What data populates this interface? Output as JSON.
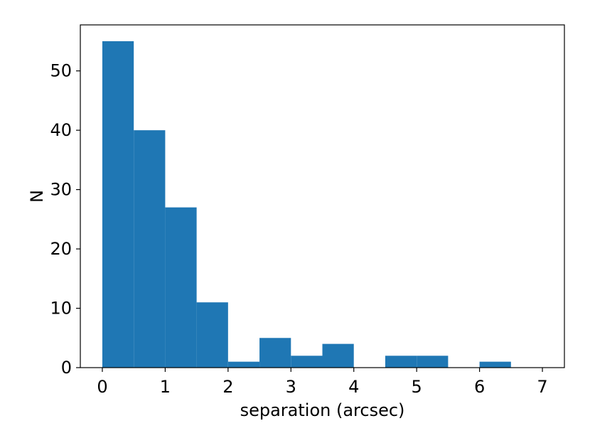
{
  "chart_data": {
    "type": "bar",
    "title": "",
    "xlabel": "separation (arcsec)",
    "ylabel": "N",
    "bin_edges": [
      0,
      0.5,
      1,
      1.5,
      2,
      2.5,
      3,
      3.5,
      4,
      4.5,
      5,
      5.5,
      6,
      6.5,
      7
    ],
    "values": [
      55,
      40,
      27,
      11,
      1,
      5,
      2,
      4,
      0,
      2,
      2,
      0,
      1,
      0
    ],
    "xlim": [
      -0.35,
      7.35
    ],
    "ylim": [
      0,
      57.75
    ],
    "xticks": [
      0,
      1,
      2,
      3,
      4,
      5,
      6,
      7
    ],
    "yticks": [
      0,
      10,
      20,
      30,
      40,
      50
    ],
    "grid": false,
    "bar_color": "#1f77b4"
  }
}
